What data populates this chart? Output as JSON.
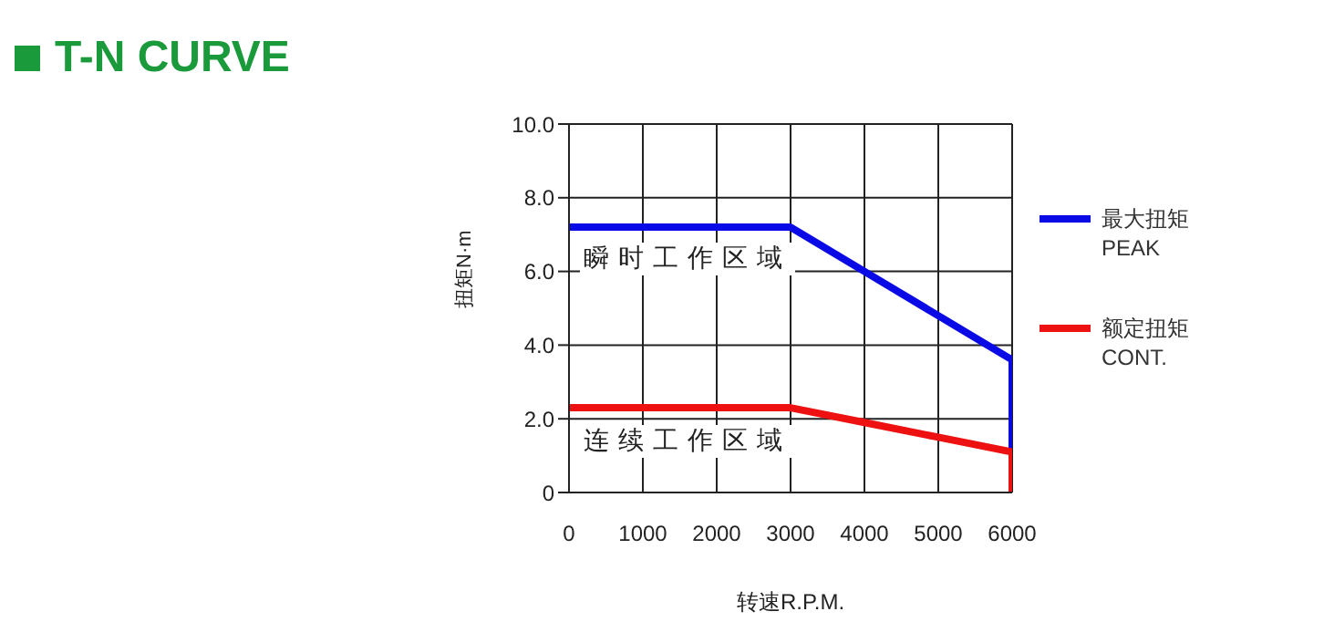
{
  "chart_data": {
    "type": "line",
    "title": "T-N CURVE",
    "xlabel": "转速R.P.M.",
    "ylabel": "扭矩N·m",
    "xlim": [
      0,
      6000
    ],
    "xticks": [
      0,
      1000,
      2000,
      3000,
      4000,
      5000,
      6000
    ],
    "ylim": [
      0,
      10
    ],
    "yticks": [
      {
        "value": 0,
        "label": "0"
      },
      {
        "value": 2,
        "label": "2.0"
      },
      {
        "value": 4,
        "label": "4.0"
      },
      {
        "value": 6,
        "label": "6.0"
      },
      {
        "value": 8,
        "label": "8.0"
      },
      {
        "value": 10,
        "label": "10.0"
      }
    ],
    "grid": true,
    "legend": "right",
    "series": [
      {
        "name": "最大扭矩\nPEAK",
        "color": "#0a0ae6",
        "x": [
          0,
          3000,
          4000,
          5000,
          6000,
          6000
        ],
        "values": [
          7.2,
          7.2,
          6.0,
          4.8,
          3.6,
          1.1
        ]
      },
      {
        "name": "额定扭矩\nCONT.",
        "color": "#ee1111",
        "x": [
          0,
          3000,
          4000,
          5000,
          6000,
          6000
        ],
        "values": [
          2.3,
          2.3,
          1.9,
          1.5,
          1.1,
          0
        ]
      }
    ],
    "annotations": [
      "瞬时工作区域",
      "连续工作区域"
    ]
  }
}
